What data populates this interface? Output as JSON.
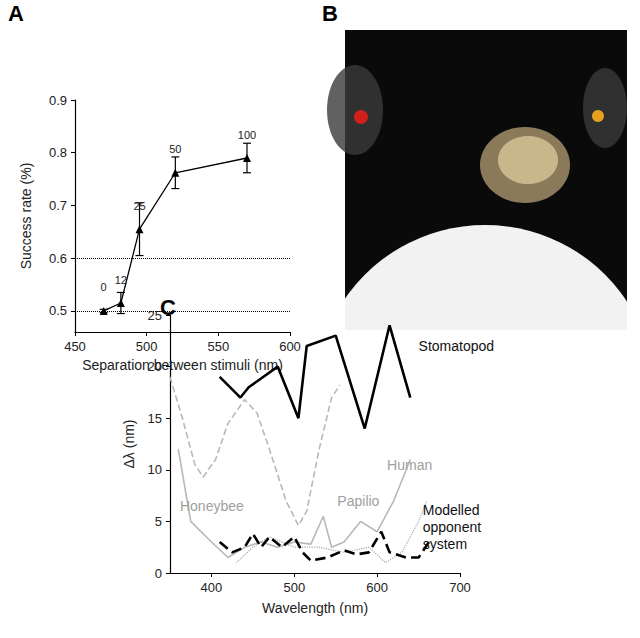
{
  "chart_data": [
    {
      "type": "line",
      "title": "A",
      "xlabel": "Separation between stimuli (nm)",
      "ylabel": "Success rate (%)",
      "xlim": [
        450,
        600
      ],
      "xticks": [
        450,
        500,
        550,
        600
      ],
      "ylim": [
        0.46,
        0.9
      ],
      "yticks": [
        0.5,
        0.6,
        0.7,
        0.8,
        0.9
      ],
      "grid": false,
      "marker": "triangle",
      "color": "#000000",
      "x": [
        470,
        482,
        495,
        520,
        570
      ],
      "values": [
        0.5,
        0.515,
        0.655,
        0.762,
        0.79
      ],
      "errors": [
        0.003,
        0.02,
        0.05,
        0.03,
        0.028
      ],
      "point_labels": [
        "0",
        "12",
        "25",
        "50",
        "100"
      ],
      "reference_lines": [
        0.5,
        0.6
      ]
    },
    {
      "type": "image",
      "title": "B"
    },
    {
      "type": "line",
      "title": "C",
      "xlabel": "Wavelength (nm)",
      "ylabel": "Δλ (nm)",
      "xlim": [
        350,
        700
      ],
      "xticks": [
        400,
        500,
        600,
        700
      ],
      "ylim": [
        0,
        25
      ],
      "yticks": [
        0,
        5,
        10,
        15,
        20,
        25
      ],
      "grid": false,
      "series": [
        {
          "name": "Stomatopod",
          "color": "#000000",
          "line_style": "solid",
          "label_position": [
            650,
            22
          ],
          "x": [
            410,
            435,
            445,
            480,
            505,
            515,
            550,
            585,
            615,
            640
          ],
          "values": [
            19,
            17,
            18,
            20,
            15,
            22,
            23,
            14,
            24,
            17
          ]
        },
        {
          "name": "Honeybee",
          "color": "#b8b8b8",
          "line_style": "dashed",
          "label_position": [
            362,
            6.5
          ],
          "x": [
            350,
            365,
            380,
            390,
            405,
            420,
            440,
            455,
            470,
            490,
            505,
            515,
            530,
            545,
            555
          ],
          "values": [
            19,
            15,
            10.5,
            9.3,
            11,
            14.5,
            16.8,
            15.5,
            12,
            7,
            4.6,
            6,
            12,
            17,
            18.2
          ]
        },
        {
          "name": "Human",
          "color": "#b8b8b8",
          "line_style": "solid",
          "label_position": [
            612,
            10.5
          ],
          "x": [
            360,
            375,
            400,
            420,
            440,
            460,
            480,
            500,
            520,
            535,
            545,
            560,
            580,
            600,
            620,
            640
          ],
          "values": [
            12,
            5,
            3,
            1.5,
            2.5,
            3,
            2.5,
            3,
            2.8,
            5.5,
            2.5,
            3,
            5,
            4,
            7,
            11
          ]
        },
        {
          "name": "Papilio",
          "color": "#a8a8a8",
          "line_style": "dotted",
          "label_position": [
            552,
            7
          ],
          "x": [
            430,
            450,
            470,
            500,
            530,
            560,
            590,
            610,
            630,
            650,
            660
          ],
          "values": [
            1,
            2.5,
            3.5,
            2.5,
            2.5,
            2,
            2.5,
            1,
            2,
            5,
            7
          ]
        },
        {
          "name": "Modelled opponent system",
          "color": "#000000",
          "line_style": "dashed",
          "label_position": [
            655,
            4.5
          ],
          "x": [
            410,
            425,
            440,
            450,
            460,
            470,
            485,
            500,
            510,
            520,
            540,
            560,
            575,
            590,
            605,
            615,
            635,
            650,
            665
          ],
          "values": [
            3,
            2,
            2.5,
            3.8,
            2.5,
            3.5,
            2.5,
            3.5,
            2,
            1.2,
            1.5,
            2.2,
            1.8,
            2,
            4,
            2,
            1.5,
            1.5,
            3.3
          ]
        }
      ]
    }
  ]
}
